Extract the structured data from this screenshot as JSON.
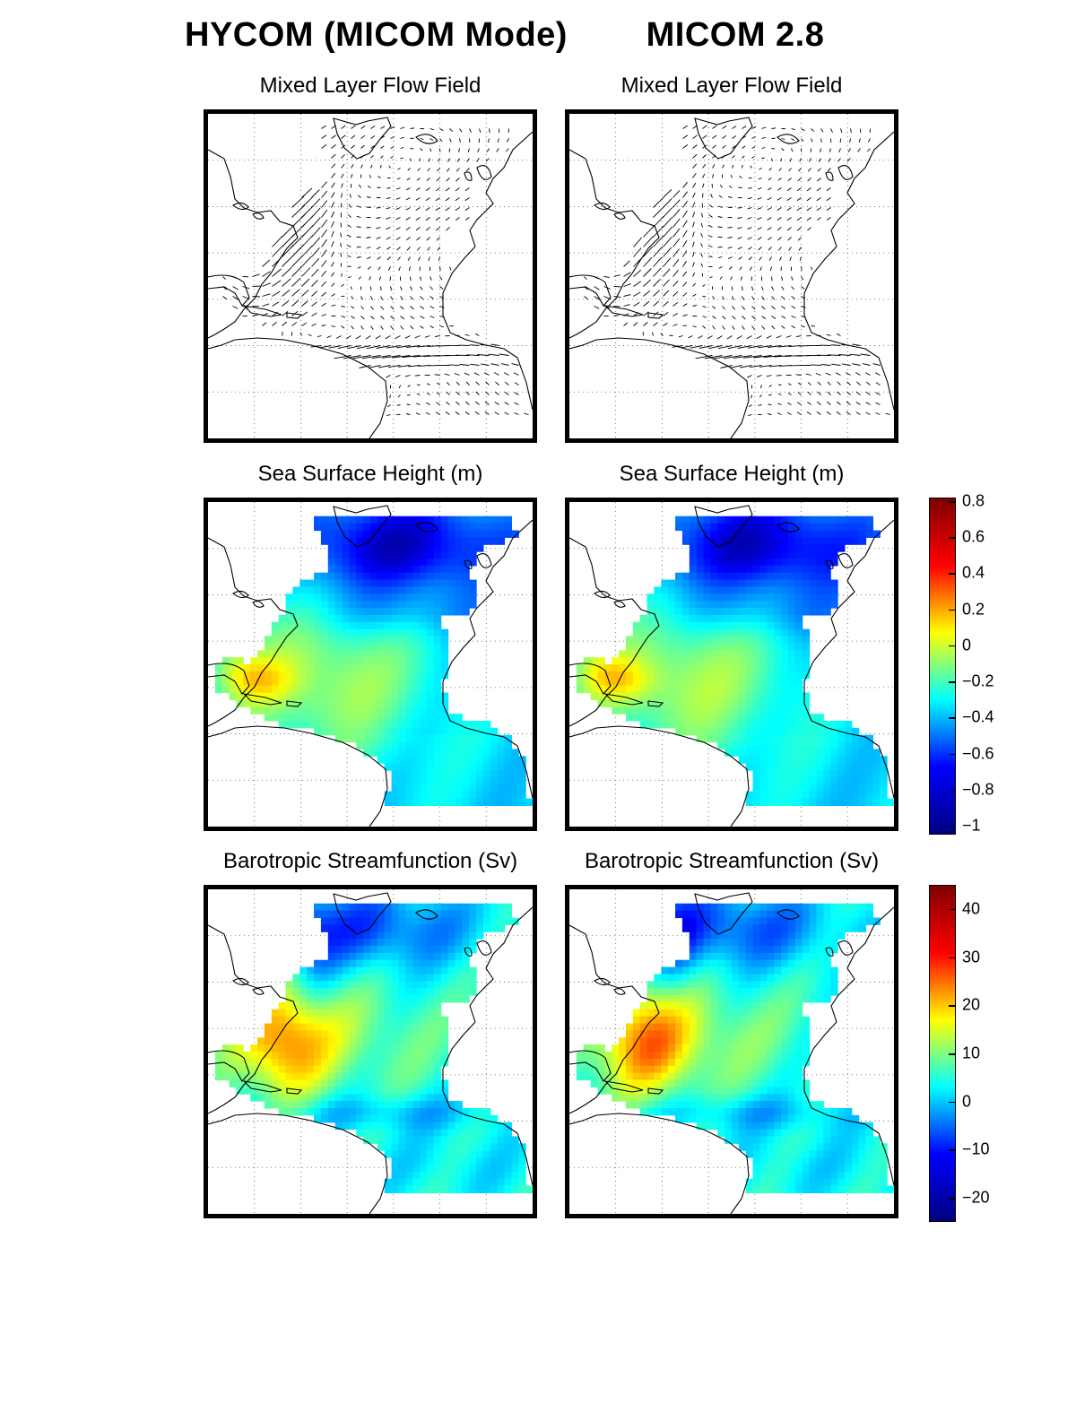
{
  "columns": {
    "left_title": "HYCOM (MICOM Mode)",
    "right_title": "MICOM 2.8"
  },
  "rows": {
    "flow_title": "Mixed Layer Flow Field",
    "ssh_title": "Sea Surface Height (m)",
    "psi_title": "Barotropic Streamfunction (Sv)"
  },
  "chart_data": [
    {
      "type": "heatmap",
      "title": "Sea Surface Height (m)",
      "colorbar": {
        "range": [
          -1.05,
          0.82
        ],
        "ticks": [
          "0.8",
          "0.6",
          "0.4",
          "0.2",
          "0",
          "−0.2",
          "−0.4",
          "−0.6",
          "−0.8",
          "−1"
        ],
        "tick_values": [
          0.8,
          0.6,
          0.4,
          0.2,
          0,
          -0.2,
          -0.4,
          -0.6,
          -0.8,
          -1
        ],
        "colormap": "jet"
      },
      "features": {
        "subpolar_gyre_min": -0.85,
        "gulf_of_mexico_max": 0.3,
        "subtropical_gyre": 0.05,
        "equatorial_band": -0.15
      }
    },
    {
      "type": "heatmap",
      "title": "Barotropic Streamfunction (Sv)",
      "colorbar": {
        "range": [
          -25,
          45
        ],
        "ticks": [
          "40",
          "30",
          "20",
          "10",
          "0",
          "−10",
          "−20"
        ],
        "tick_values": [
          40,
          30,
          20,
          10,
          0,
          -10,
          -20
        ],
        "colormap": "jet"
      },
      "features": {
        "subpolar_gyre_min": -20,
        "caribbean_max": 38,
        "subtropical_gyre": 25,
        "equatorial_band": -8
      }
    }
  ],
  "colors": {
    "frame": "#000000",
    "coast": "#000000"
  }
}
